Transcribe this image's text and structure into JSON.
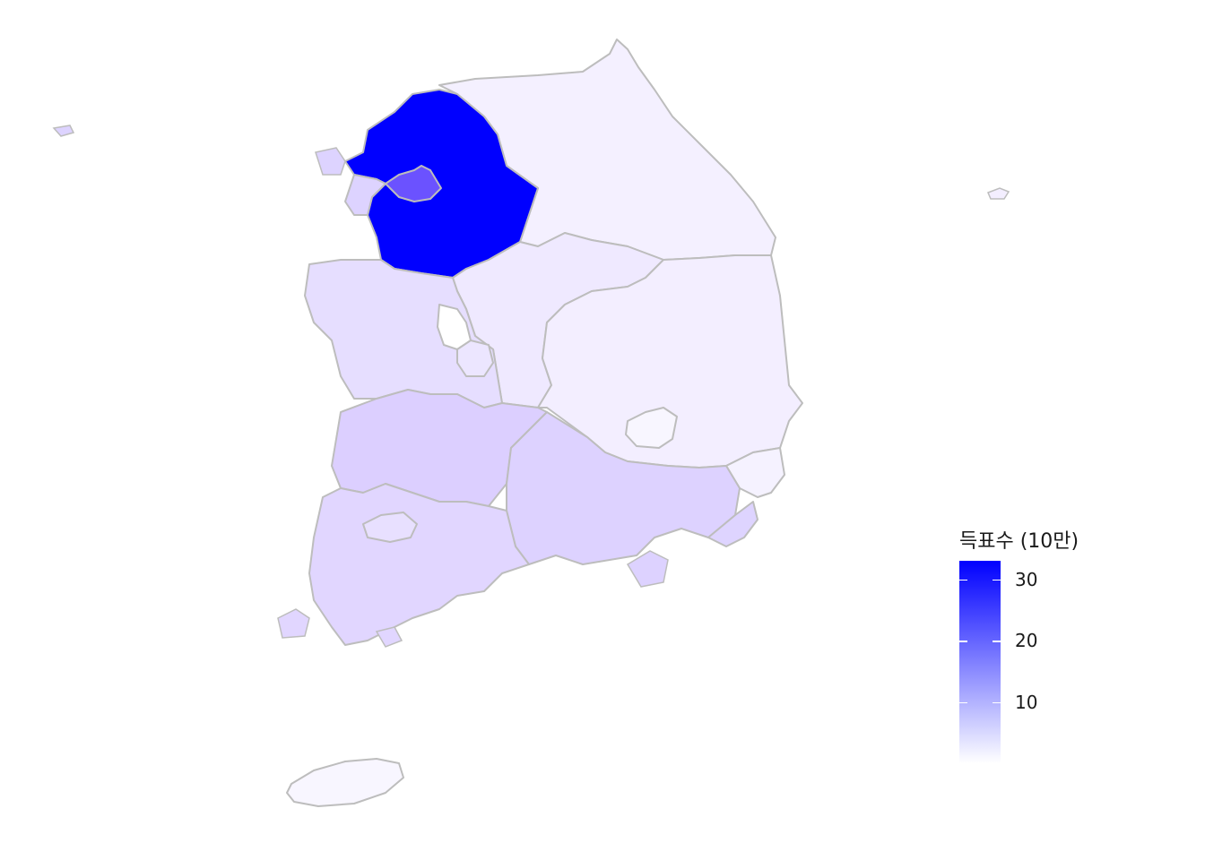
{
  "map": {
    "regions": [
      {
        "name": "Gyeonggi",
        "value": 33.0,
        "color": "#0000ff"
      },
      {
        "name": "Seoul",
        "value": 22.0,
        "color": "#6b52ff"
      },
      {
        "name": "Incheon",
        "value": 4.5,
        "color": "#ddd3ff"
      },
      {
        "name": "Gangwon",
        "value": 1.2,
        "color": "#f4f0ff"
      },
      {
        "name": "Chungbuk",
        "value": 1.5,
        "color": "#efe9ff"
      },
      {
        "name": "Chungnam",
        "value": 3.2,
        "color": "#e6deff"
      },
      {
        "name": "Sejong",
        "value": 0.0,
        "color": "#ffffff"
      },
      {
        "name": "Daejeon",
        "value": 2.0,
        "color": "#ece6ff"
      },
      {
        "name": "Gyeongbuk",
        "value": 1.2,
        "color": "#f3eeff"
      },
      {
        "name": "Daegu",
        "value": 0.5,
        "color": "#f8f6ff"
      },
      {
        "name": "Jeonbuk",
        "value": 6.0,
        "color": "#dccfff"
      },
      {
        "name": "Jeonnam",
        "value": 5.0,
        "color": "#e1d6ff"
      },
      {
        "name": "Gwangju",
        "value": 3.0,
        "color": "#e8e0ff"
      },
      {
        "name": "Gyeongnam",
        "value": 5.5,
        "color": "#ddd2ff"
      },
      {
        "name": "Busan",
        "value": 4.0,
        "color": "#ded4ff"
      },
      {
        "name": "Ulsan",
        "value": 1.0,
        "color": "#f5f2ff"
      },
      {
        "name": "Jeju",
        "value": 0.5,
        "color": "#f8f6ff"
      }
    ],
    "border_color": "#bdbdbd"
  },
  "legend": {
    "title": "득표수 (10만)",
    "low_color": "#ffffff",
    "high_color": "#0000ff",
    "min": 0.0,
    "max": 33.0,
    "ticks": [
      {
        "value": 30,
        "label": "30"
      },
      {
        "value": 20,
        "label": "20"
      },
      {
        "value": 10,
        "label": "10"
      }
    ]
  }
}
